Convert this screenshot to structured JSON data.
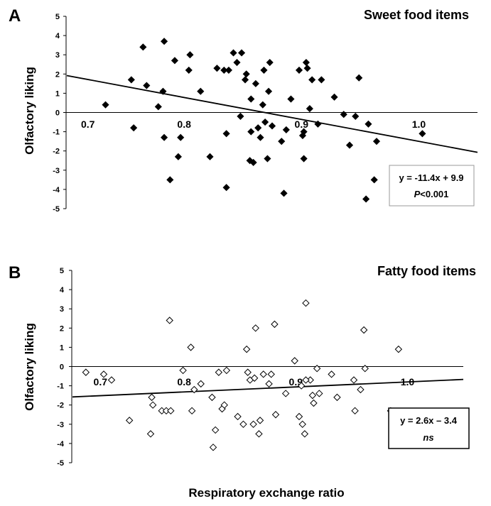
{
  "figure": {
    "xlabel": "Respiratory exchange ratio"
  },
  "chart_data": [
    {
      "type": "scatter",
      "panel": "A",
      "title": "Sweet food items",
      "ylabel": "Olfactory liking",
      "xlabel": "Respiratory exchange ratio",
      "xlim": [
        0.7,
        1.05
      ],
      "ylim": [
        -5,
        5
      ],
      "x_ticks": [
        "0.7",
        "0.8",
        "0.9",
        "1.0"
      ],
      "y_ticks": [
        "5",
        "4",
        "3",
        "2",
        "1",
        "0",
        "-1",
        "-2",
        "-3",
        "-4",
        "-5"
      ],
      "marker": "filled-diamond",
      "regression": {
        "slope": -11.4,
        "intercept": 9.9
      },
      "annotation": {
        "equation": "y = -11.4x + 9.9",
        "p_prefix": "P",
        "p_suffix": "<0.001"
      },
      "points": [
        [
          0.733,
          0.4
        ],
        [
          0.755,
          1.7
        ],
        [
          0.757,
          -0.8
        ],
        [
          0.765,
          3.4
        ],
        [
          0.768,
          1.4
        ],
        [
          0.778,
          0.3
        ],
        [
          0.782,
          1.1
        ],
        [
          0.783,
          -1.3
        ],
        [
          0.783,
          3.7
        ],
        [
          0.788,
          -3.5
        ],
        [
          0.792,
          2.7
        ],
        [
          0.795,
          -2.3
        ],
        [
          0.797,
          -1.3
        ],
        [
          0.804,
          2.2
        ],
        [
          0.805,
          3.0
        ],
        [
          0.814,
          1.1
        ],
        [
          0.822,
          -2.3
        ],
        [
          0.828,
          2.3
        ],
        [
          0.834,
          2.2
        ],
        [
          0.836,
          -1.1
        ],
        [
          0.836,
          -3.9
        ],
        [
          0.838,
          2.2
        ],
        [
          0.842,
          3.1
        ],
        [
          0.845,
          2.6
        ],
        [
          0.848,
          -0.2
        ],
        [
          0.849,
          3.1
        ],
        [
          0.852,
          1.7
        ],
        [
          0.853,
          2.0
        ],
        [
          0.856,
          -2.5
        ],
        [
          0.857,
          0.7
        ],
        [
          0.859,
          -2.6
        ],
        [
          0.861,
          1.5
        ],
        [
          0.863,
          -0.8
        ],
        [
          0.865,
          -1.3
        ],
        [
          0.867,
          0.4
        ],
        [
          0.868,
          2.2
        ],
        [
          0.869,
          -0.5
        ],
        [
          0.871,
          -2.4
        ],
        [
          0.872,
          1.1
        ],
        [
          0.873,
          2.6
        ],
        [
          0.875,
          -0.7
        ],
        [
          0.883,
          -1.5
        ],
        [
          0.885,
          -4.2
        ],
        [
          0.887,
          -0.9
        ],
        [
          0.891,
          0.7
        ],
        [
          0.898,
          2.2
        ],
        [
          0.901,
          -1.2
        ],
        [
          0.902,
          -2.4
        ],
        [
          0.904,
          2.6
        ],
        [
          0.905,
          2.3
        ],
        [
          0.907,
          0.2
        ],
        [
          0.909,
          1.7
        ],
        [
          0.914,
          -0.6
        ],
        [
          0.917,
          1.7
        ],
        [
          0.928,
          0.8
        ],
        [
          0.936,
          -0.1
        ],
        [
          0.941,
          -1.7
        ],
        [
          0.946,
          -0.2
        ],
        [
          0.949,
          1.8
        ],
        [
          0.955,
          -4.5
        ],
        [
          0.957,
          -0.6
        ],
        [
          0.962,
          -3.5
        ],
        [
          0.964,
          -1.5
        ],
        [
          1.003,
          -1.1
        ],
        [
          0.902,
          -1.0
        ],
        [
          0.857,
          -1.0
        ]
      ]
    },
    {
      "type": "scatter",
      "panel": "B",
      "title": "Fatty food items",
      "ylabel": "Olfactory liking",
      "xlabel": "Respiratory exchange ratio",
      "xlim": [
        0.7,
        1.05
      ],
      "ylim": [
        -5,
        5
      ],
      "x_ticks": [
        "0.7",
        "0.8",
        "0.9",
        "1.0"
      ],
      "y_ticks": [
        "5",
        "4",
        "3",
        "2",
        "1",
        "0",
        "-1",
        "-2",
        "-3",
        "-4",
        "-5"
      ],
      "marker": "open-diamond",
      "regression": {
        "slope": 2.6,
        "intercept": -3.4
      },
      "annotation": {
        "equation": "y = 2.6x – 3.4",
        "note": "ns"
      },
      "points": [
        [
          0.712,
          -0.3
        ],
        [
          0.728,
          -0.4
        ],
        [
          0.735,
          -0.7
        ],
        [
          0.751,
          -2.8
        ],
        [
          0.77,
          -3.5
        ],
        [
          0.771,
          -1.6
        ],
        [
          0.772,
          -2.0
        ],
        [
          0.78,
          -2.3
        ],
        [
          0.784,
          -2.3
        ],
        [
          0.787,
          2.4
        ],
        [
          0.788,
          -2.3
        ],
        [
          0.799,
          -0.2
        ],
        [
          0.806,
          1.0
        ],
        [
          0.807,
          -2.3
        ],
        [
          0.809,
          -1.2
        ],
        [
          0.815,
          -0.9
        ],
        [
          0.825,
          -1.6
        ],
        [
          0.826,
          -4.2
        ],
        [
          0.828,
          -3.3
        ],
        [
          0.831,
          -0.3
        ],
        [
          0.834,
          -2.2
        ],
        [
          0.836,
          -2.0
        ],
        [
          0.838,
          -0.2
        ],
        [
          0.848,
          -2.6
        ],
        [
          0.853,
          -3.0
        ],
        [
          0.856,
          0.9
        ],
        [
          0.857,
          -0.3
        ],
        [
          0.859,
          -0.7
        ],
        [
          0.862,
          -3.0
        ],
        [
          0.863,
          -0.6
        ],
        [
          0.864,
          2.0
        ],
        [
          0.867,
          -3.5
        ],
        [
          0.868,
          -2.8
        ],
        [
          0.871,
          -0.4
        ],
        [
          0.876,
          -0.9
        ],
        [
          0.878,
          -0.4
        ],
        [
          0.881,
          2.2
        ],
        [
          0.882,
          -2.5
        ],
        [
          0.891,
          -1.4
        ],
        [
          0.899,
          0.3
        ],
        [
          0.903,
          -2.6
        ],
        [
          0.905,
          -1.0
        ],
        [
          0.906,
          -3.0
        ],
        [
          0.908,
          -3.5
        ],
        [
          0.909,
          3.3
        ],
        [
          0.913,
          -0.7
        ],
        [
          0.915,
          -1.5
        ],
        [
          0.916,
          -1.9
        ],
        [
          0.919,
          -0.1
        ],
        [
          0.921,
          -1.4
        ],
        [
          0.932,
          -0.4
        ],
        [
          0.937,
          -1.6
        ],
        [
          0.952,
          -0.7
        ],
        [
          0.953,
          -2.3
        ],
        [
          0.958,
          -1.2
        ],
        [
          0.961,
          1.9
        ],
        [
          0.962,
          -0.1
        ],
        [
          0.985,
          -2.3
        ],
        [
          0.992,
          0.9
        ],
        [
          0.909,
          -0.7
        ]
      ]
    }
  ]
}
